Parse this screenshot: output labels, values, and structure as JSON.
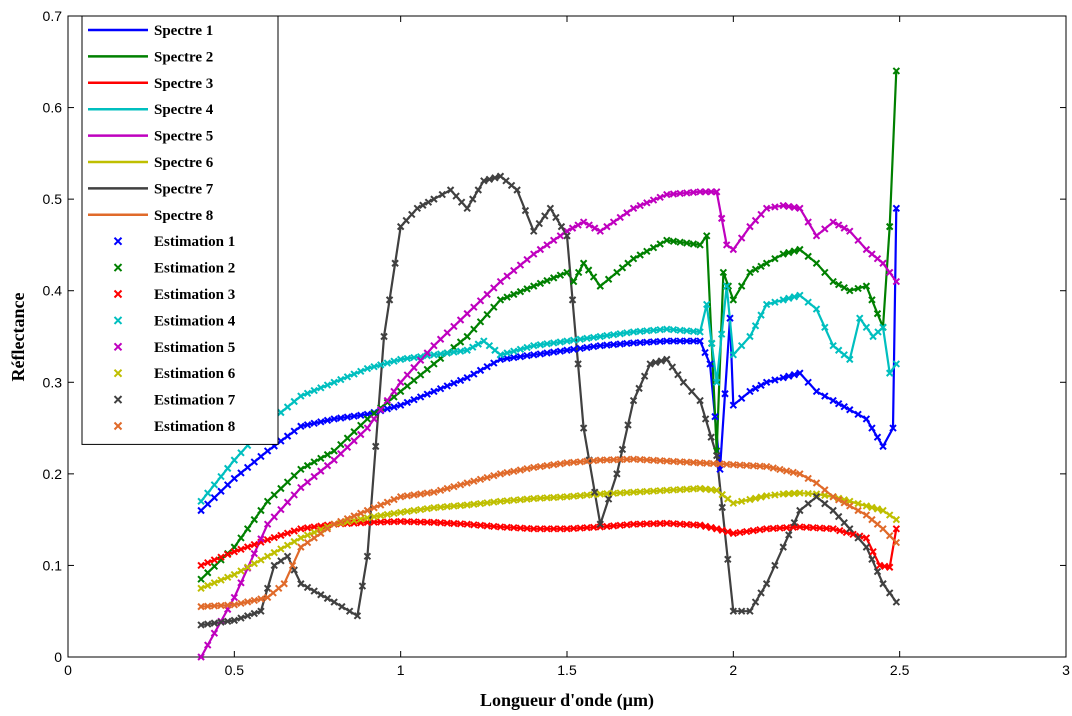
{
  "chart_data": {
    "type": "line",
    "xlabel": "Longueur  d'onde (µm)",
    "ylabel": "Réflectance",
    "xlim": [
      0,
      3
    ],
    "ylim": [
      0,
      0.7
    ],
    "xticks": [
      0,
      0.5,
      1,
      1.5,
      2,
      2.5,
      3
    ],
    "xtick_labels": [
      "0",
      "0.5",
      "1",
      "1.5",
      "2",
      "2.5",
      "3"
    ],
    "yticks": [
      0,
      0.1,
      0.2,
      0.3,
      0.4,
      0.5,
      0.6,
      0.7
    ],
    "ytick_labels": [
      "0",
      "0.1",
      "0.2",
      "0.3",
      "0.4",
      "0.5",
      "0.6",
      "0.7"
    ],
    "grid": false,
    "legend_position": "top-left",
    "series": [
      {
        "name": "Spectre 1",
        "color": "#0000ff",
        "style": "line",
        "x": [
          0.4,
          0.5,
          0.6,
          0.7,
          0.8,
          0.9,
          1.0,
          1.1,
          1.2,
          1.3,
          1.4,
          1.5,
          1.6,
          1.7,
          1.8,
          1.9,
          1.93,
          1.96,
          1.99,
          2.0,
          2.05,
          2.1,
          2.15,
          2.2,
          2.25,
          2.3,
          2.35,
          2.4,
          2.45,
          2.48,
          2.49
        ],
        "y": [
          0.16,
          0.195,
          0.225,
          0.252,
          0.26,
          0.265,
          0.275,
          0.29,
          0.305,
          0.325,
          0.33,
          0.335,
          0.34,
          0.343,
          0.345,
          0.345,
          0.32,
          0.205,
          0.37,
          0.275,
          0.29,
          0.3,
          0.305,
          0.31,
          0.29,
          0.28,
          0.27,
          0.26,
          0.23,
          0.25,
          0.49
        ]
      },
      {
        "name": "Spectre 2",
        "color": "#008000",
        "style": "line",
        "x": [
          0.4,
          0.5,
          0.6,
          0.7,
          0.8,
          0.9,
          1.0,
          1.1,
          1.2,
          1.3,
          1.4,
          1.5,
          1.52,
          1.55,
          1.58,
          1.6,
          1.65,
          1.7,
          1.8,
          1.9,
          1.92,
          1.95,
          1.97,
          2.0,
          2.05,
          2.1,
          2.15,
          2.2,
          2.25,
          2.3,
          2.35,
          2.4,
          2.45,
          2.47,
          2.49
        ],
        "y": [
          0.085,
          0.12,
          0.17,
          0.205,
          0.225,
          0.26,
          0.29,
          0.32,
          0.35,
          0.39,
          0.405,
          0.42,
          0.41,
          0.43,
          0.415,
          0.405,
          0.42,
          0.435,
          0.455,
          0.45,
          0.46,
          0.225,
          0.42,
          0.39,
          0.42,
          0.43,
          0.44,
          0.445,
          0.43,
          0.41,
          0.4,
          0.405,
          0.36,
          0.47,
          0.64
        ]
      },
      {
        "name": "Spectre 3",
        "color": "#ff0000",
        "style": "line",
        "x": [
          0.4,
          0.5,
          0.6,
          0.7,
          0.8,
          0.9,
          1.0,
          1.1,
          1.2,
          1.3,
          1.4,
          1.5,
          1.6,
          1.7,
          1.8,
          1.9,
          1.95,
          2.0,
          2.1,
          2.2,
          2.3,
          2.4,
          2.44,
          2.47,
          2.49
        ],
        "y": [
          0.1,
          0.115,
          0.128,
          0.14,
          0.145,
          0.147,
          0.148,
          0.147,
          0.145,
          0.142,
          0.14,
          0.14,
          0.142,
          0.145,
          0.146,
          0.144,
          0.14,
          0.135,
          0.14,
          0.142,
          0.14,
          0.13,
          0.1,
          0.098,
          0.14
        ]
      },
      {
        "name": "Spectre 4",
        "color": "#00bfbf",
        "style": "line",
        "x": [
          0.4,
          0.5,
          0.6,
          0.7,
          0.8,
          0.9,
          1.0,
          1.1,
          1.2,
          1.25,
          1.3,
          1.4,
          1.5,
          1.6,
          1.7,
          1.8,
          1.9,
          1.92,
          1.95,
          1.98,
          2.0,
          2.05,
          2.1,
          2.15,
          2.2,
          2.25,
          2.3,
          2.35,
          2.38,
          2.42,
          2.45,
          2.47,
          2.49
        ],
        "y": [
          0.17,
          0.215,
          0.255,
          0.285,
          0.3,
          0.315,
          0.325,
          0.33,
          0.335,
          0.345,
          0.33,
          0.34,
          0.345,
          0.35,
          0.355,
          0.358,
          0.355,
          0.385,
          0.3,
          0.405,
          0.33,
          0.35,
          0.385,
          0.39,
          0.395,
          0.38,
          0.34,
          0.325,
          0.37,
          0.35,
          0.36,
          0.31,
          0.32
        ]
      },
      {
        "name": "Spectre 5",
        "color": "#bf00bf",
        "style": "line",
        "x": [
          0.4,
          0.5,
          0.6,
          0.7,
          0.8,
          0.9,
          1.0,
          1.1,
          1.2,
          1.3,
          1.4,
          1.5,
          1.55,
          1.6,
          1.7,
          1.8,
          1.9,
          1.95,
          1.98,
          2.0,
          2.05,
          2.1,
          2.15,
          2.2,
          2.25,
          2.3,
          2.35,
          2.4,
          2.45,
          2.49
        ],
        "y": [
          0.0,
          0.065,
          0.145,
          0.185,
          0.215,
          0.25,
          0.3,
          0.34,
          0.375,
          0.41,
          0.44,
          0.465,
          0.475,
          0.465,
          0.49,
          0.505,
          0.508,
          0.508,
          0.45,
          0.445,
          0.47,
          0.49,
          0.493,
          0.49,
          0.46,
          0.475,
          0.465,
          0.445,
          0.43,
          0.41
        ]
      },
      {
        "name": "Spectre 6",
        "color": "#bfbf00",
        "style": "line",
        "x": [
          0.4,
          0.5,
          0.6,
          0.7,
          0.8,
          0.9,
          1.0,
          1.1,
          1.2,
          1.3,
          1.4,
          1.5,
          1.6,
          1.7,
          1.8,
          1.9,
          1.95,
          2.0,
          2.05,
          2.1,
          2.15,
          2.2,
          2.25,
          2.3,
          2.35,
          2.4,
          2.45,
          2.49
        ],
        "y": [
          0.075,
          0.09,
          0.11,
          0.13,
          0.145,
          0.152,
          0.158,
          0.163,
          0.166,
          0.17,
          0.173,
          0.175,
          0.178,
          0.18,
          0.182,
          0.184,
          0.182,
          0.168,
          0.172,
          0.176,
          0.178,
          0.179,
          0.178,
          0.175,
          0.17,
          0.165,
          0.16,
          0.15
        ]
      },
      {
        "name": "Spectre 7",
        "color": "#404040",
        "style": "line",
        "x": [
          0.4,
          0.5,
          0.58,
          0.62,
          0.66,
          0.7,
          0.8,
          0.87,
          0.9,
          0.95,
          1.0,
          1.05,
          1.1,
          1.15,
          1.2,
          1.25,
          1.3,
          1.35,
          1.4,
          1.45,
          1.5,
          1.55,
          1.6,
          1.65,
          1.7,
          1.75,
          1.8,
          1.85,
          1.9,
          1.95,
          2.0,
          2.05,
          2.1,
          2.15,
          2.2,
          2.25,
          2.3,
          2.35,
          2.4,
          2.45,
          2.49
        ],
        "y": [
          0.035,
          0.04,
          0.05,
          0.1,
          0.11,
          0.08,
          0.06,
          0.045,
          0.11,
          0.35,
          0.47,
          0.49,
          0.5,
          0.51,
          0.49,
          0.52,
          0.525,
          0.51,
          0.465,
          0.49,
          0.46,
          0.25,
          0.145,
          0.2,
          0.28,
          0.32,
          0.325,
          0.3,
          0.28,
          0.22,
          0.05,
          0.05,
          0.08,
          0.12,
          0.16,
          0.175,
          0.16,
          0.14,
          0.12,
          0.08,
          0.06
        ]
      },
      {
        "name": "Spectre 8",
        "color": "#e06a2a",
        "style": "line",
        "x": [
          0.4,
          0.5,
          0.6,
          0.65,
          0.7,
          0.8,
          0.9,
          1.0,
          1.1,
          1.2,
          1.3,
          1.4,
          1.5,
          1.6,
          1.7,
          1.8,
          1.9,
          2.0,
          2.1,
          2.2,
          2.25,
          2.3,
          2.35,
          2.4,
          2.45,
          2.49
        ],
        "y": [
          0.055,
          0.057,
          0.065,
          0.08,
          0.12,
          0.145,
          0.16,
          0.175,
          0.18,
          0.19,
          0.2,
          0.207,
          0.212,
          0.215,
          0.216,
          0.214,
          0.212,
          0.21,
          0.208,
          0.2,
          0.19,
          0.175,
          0.165,
          0.155,
          0.14,
          0.125
        ]
      },
      {
        "name": "Estimation 1",
        "color": "#0000ff",
        "style": "marker",
        "of": 0
      },
      {
        "name": "Estimation 2",
        "color": "#008000",
        "style": "marker",
        "of": 1
      },
      {
        "name": "Estimation 3",
        "color": "#ff0000",
        "style": "marker",
        "of": 2
      },
      {
        "name": "Estimation 4",
        "color": "#00bfbf",
        "style": "marker",
        "of": 3
      },
      {
        "name": "Estimation 5",
        "color": "#bf00bf",
        "style": "marker",
        "of": 4
      },
      {
        "name": "Estimation 6",
        "color": "#bfbf00",
        "style": "marker",
        "of": 5
      },
      {
        "name": "Estimation 7",
        "color": "#404040",
        "style": "marker",
        "of": 6
      },
      {
        "name": "Estimation 8",
        "color": "#e06a2a",
        "style": "marker",
        "of": 7
      }
    ]
  }
}
